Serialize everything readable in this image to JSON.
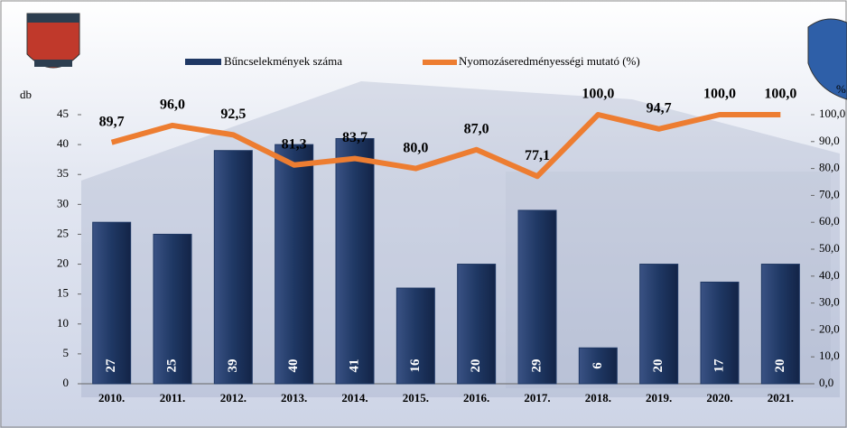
{
  "chart_data": {
    "type": "bar-line",
    "y_label": "db",
    "y2_label": "%",
    "categories": [
      "2010.",
      "2011.",
      "2012.",
      "2013.",
      "2014.",
      "2015.",
      "2016.",
      "2017.",
      "2018.",
      "2019.",
      "2020.",
      "2021."
    ],
    "series": [
      {
        "name": "Bűncselekmények száma",
        "type": "bar",
        "color": "#1f3864",
        "values": [
          27,
          25,
          39,
          40,
          41,
          16,
          20,
          29,
          6,
          20,
          17,
          20
        ]
      },
      {
        "name": "Nyomozáseredményességi mutató (%)",
        "type": "line",
        "color": "#ed7d31",
        "axis": "y2",
        "values": [
          89.7,
          96.0,
          92.5,
          81.3,
          83.7,
          80.0,
          87.0,
          77.1,
          100.0,
          94.7,
          100.0,
          100.0
        ],
        "value_labels": [
          "89,7",
          "96,0",
          "92,5",
          "81,3",
          "83,7",
          "80,0",
          "87,0",
          "77,1",
          "100,0",
          "94,7",
          "100,0",
          "100,0"
        ]
      }
    ],
    "ylim": [
      0,
      45
    ],
    "yticks": [
      0,
      5,
      10,
      15,
      20,
      25,
      30,
      35,
      40,
      45
    ],
    "y2lim": [
      0,
      100
    ],
    "y2ticks": [
      {
        "value": 0,
        "label": "0,0"
      },
      {
        "value": 10,
        "label": "10,0"
      },
      {
        "value": 20,
        "label": "20,0"
      },
      {
        "value": 30,
        "label": "30,0"
      },
      {
        "value": 40,
        "label": "40,0"
      },
      {
        "value": 50,
        "label": "50,0"
      },
      {
        "value": 60,
        "label": "60,0"
      },
      {
        "value": 70,
        "label": "70,0"
      },
      {
        "value": 80,
        "label": "80,0"
      },
      {
        "value": 90,
        "label": "90,0"
      },
      {
        "value": 100,
        "label": "100,0"
      }
    ],
    "legend": "top"
  }
}
